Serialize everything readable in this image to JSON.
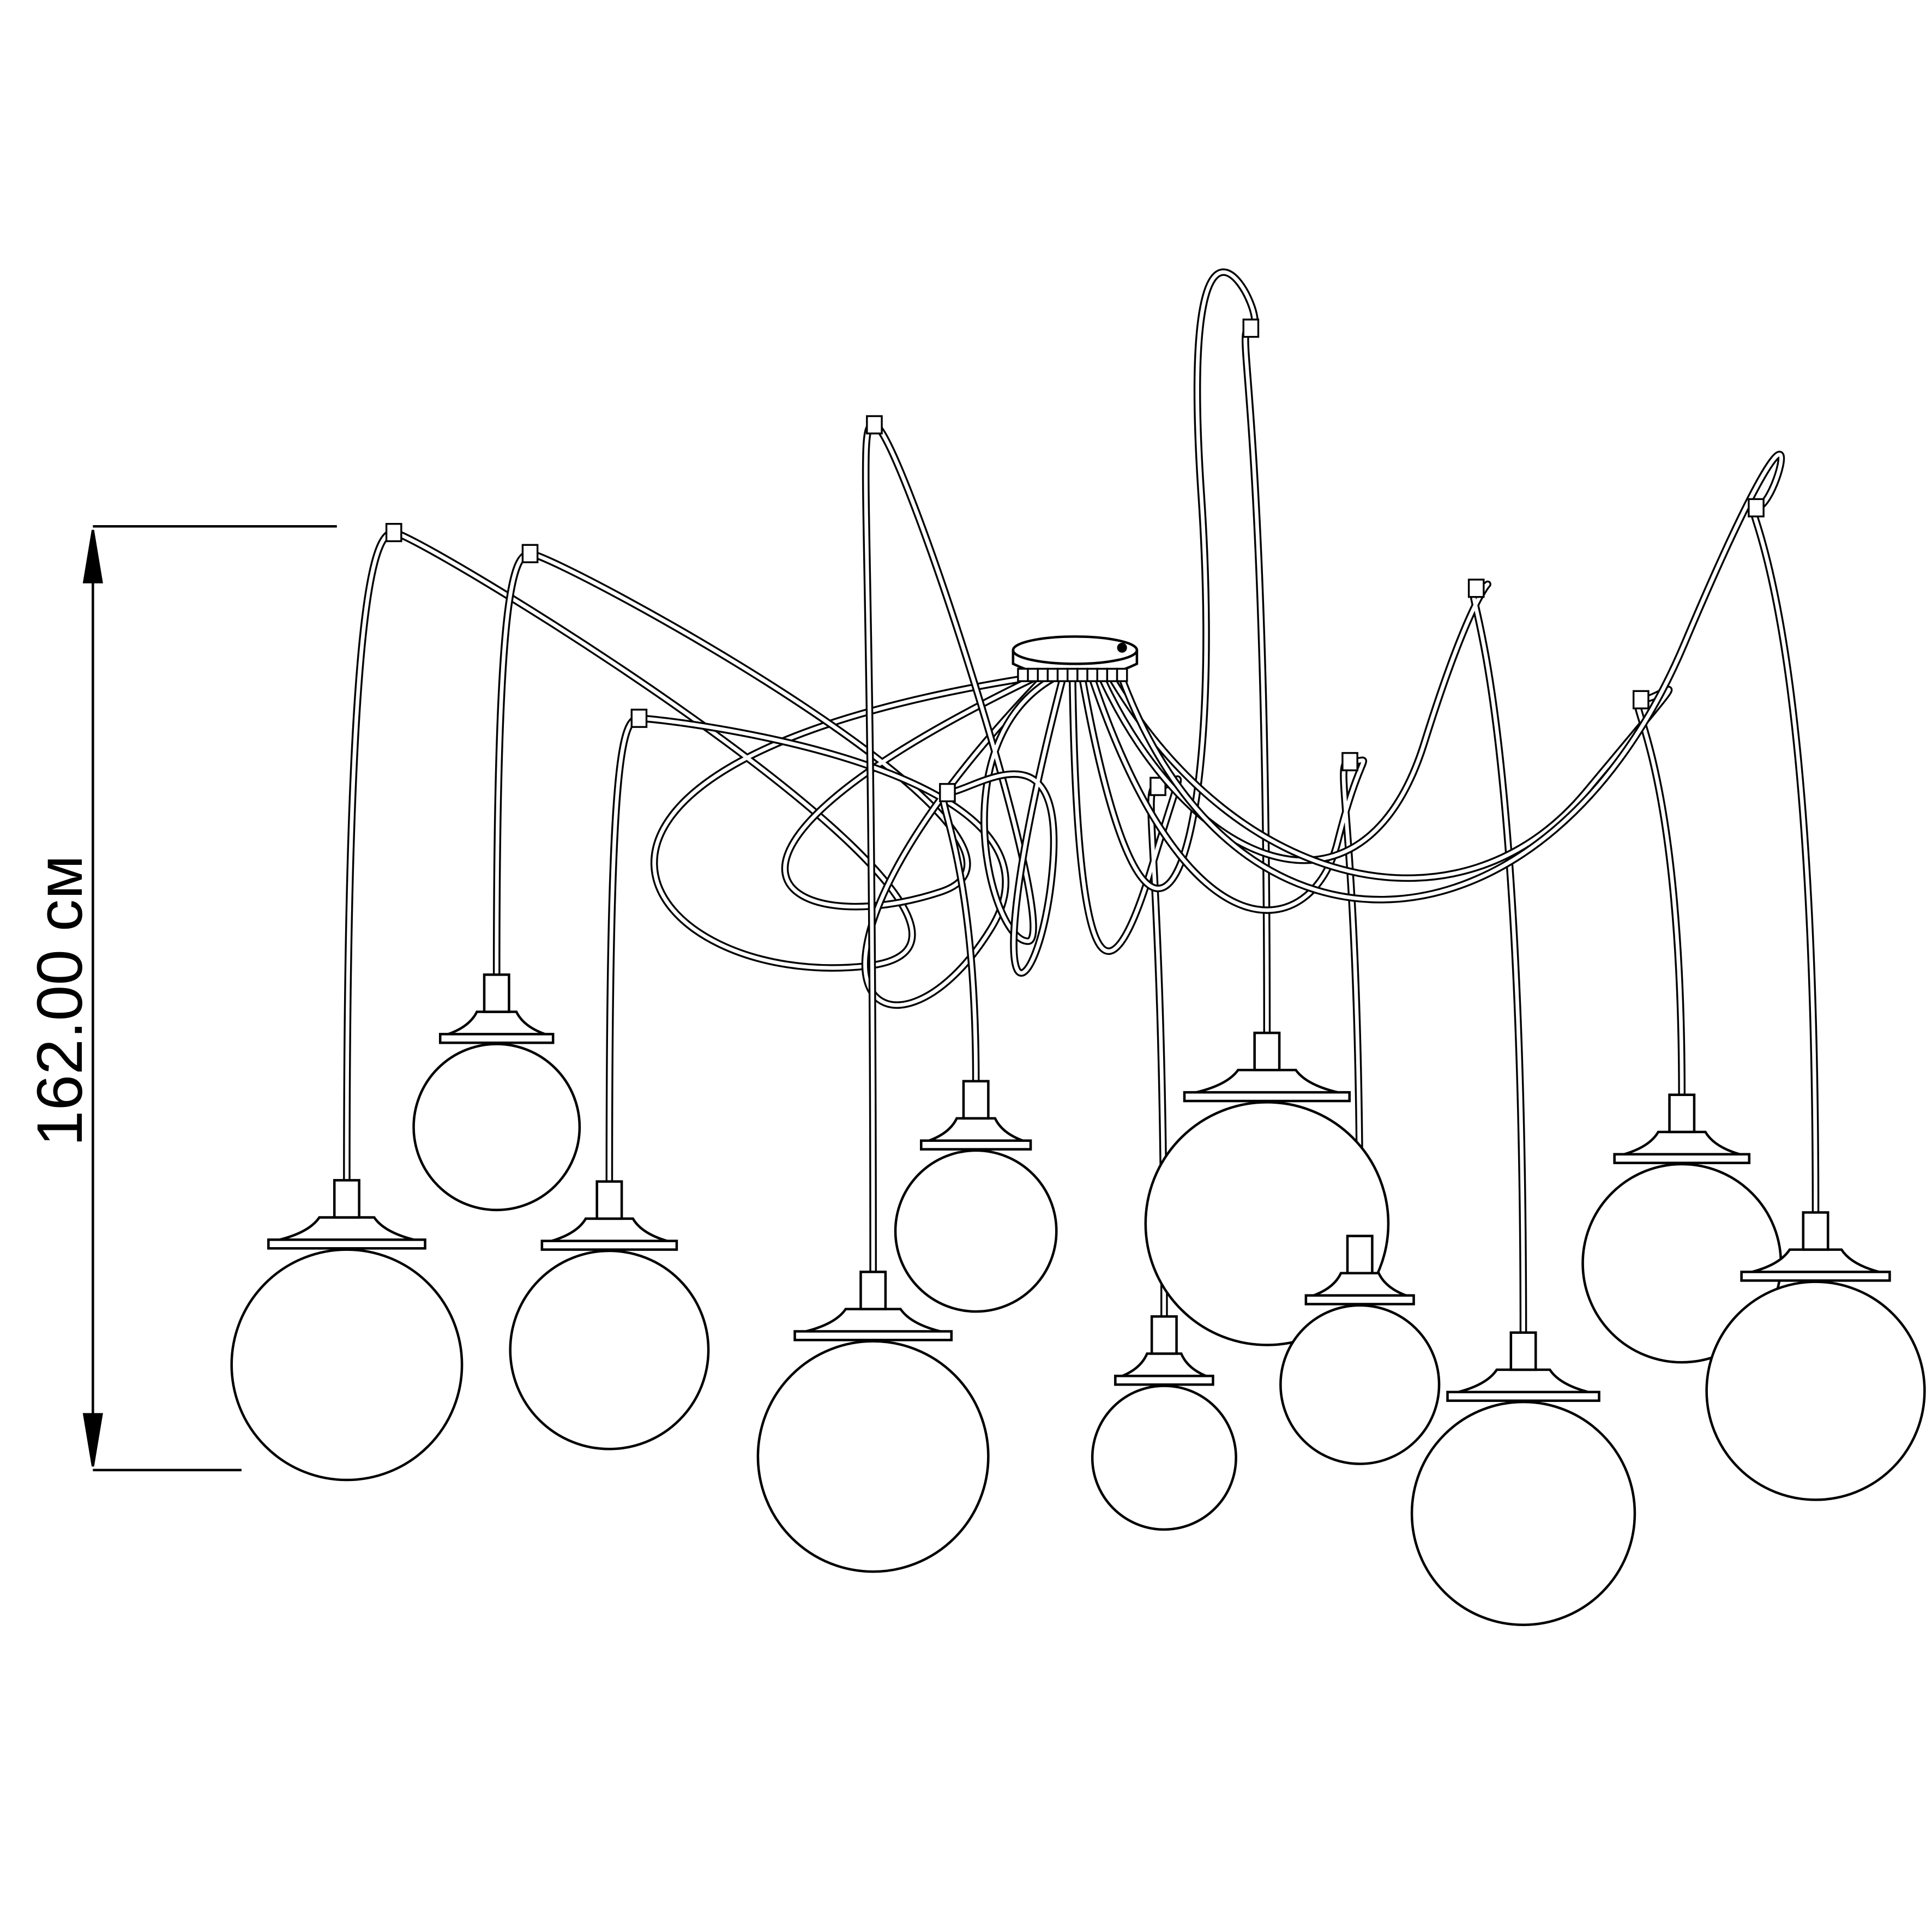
{
  "dimension": {
    "height_label": "162.00 см"
  },
  "colors": {
    "line": "#000000",
    "background": "#ffffff"
  }
}
